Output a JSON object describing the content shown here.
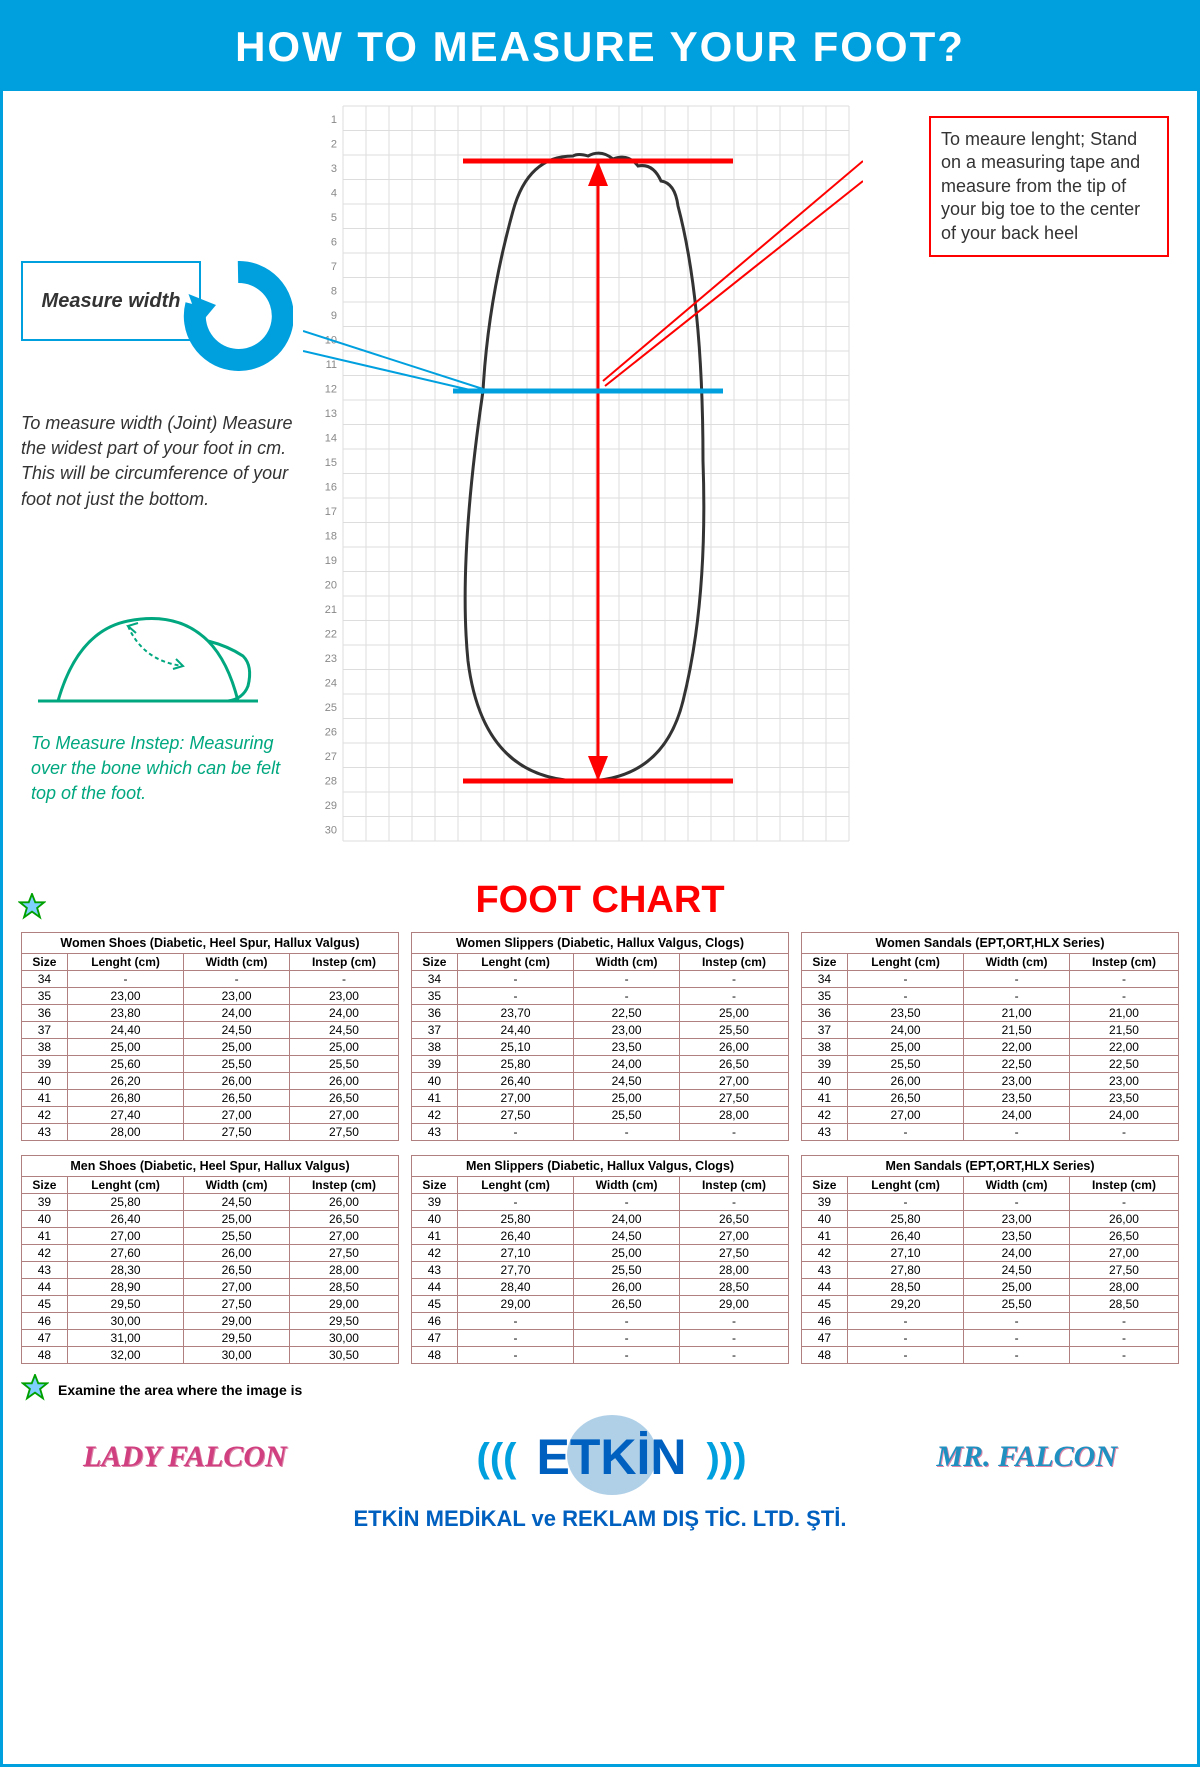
{
  "header": "HOW TO MEASURE YOUR FOOT?",
  "labels": {
    "measureWidth": "Measure width",
    "widthDesc": "To measure width (Joint) Measure the widest part of your foot in cm. This will be circumference of your foot not just the bottom.",
    "instepDesc": "To Measure Instep: Measuring over the bone which can be felt top of the foot.",
    "lengthDesc": "To meaure lenght; Stand on a measuring tape and measure from  the tip of your big toe to the center of your back heel",
    "chartTitle": "FOOT CHART",
    "footnote": "Examine the area where the image is",
    "company": "ETKİN MEDİKAL ve REKLAM DIŞ TİC. LTD. ŞTİ.",
    "lady": "LADY FALCON",
    "etkin": "ETKİN",
    "mr": "MR. FALCON"
  },
  "gridNumbers": [
    1,
    2,
    3,
    4,
    5,
    6,
    7,
    8,
    9,
    10,
    11,
    12,
    13,
    14,
    15,
    16,
    17,
    18,
    19,
    20,
    21,
    22,
    23,
    24,
    25,
    26,
    27,
    28,
    29,
    30
  ],
  "tableHeaders": [
    "Size",
    "Lenght (cm)",
    "Width (cm)",
    "Instep (cm)"
  ],
  "tables": [
    {
      "title": "Women Shoes (Diabetic, Heel Spur, Hallux Valgus)",
      "rows": [
        [
          "34",
          "-",
          "-",
          "-"
        ],
        [
          "35",
          "23,00",
          "23,00",
          "23,00"
        ],
        [
          "36",
          "23,80",
          "24,00",
          "24,00"
        ],
        [
          "37",
          "24,40",
          "24,50",
          "24,50"
        ],
        [
          "38",
          "25,00",
          "25,00",
          "25,00"
        ],
        [
          "39",
          "25,60",
          "25,50",
          "25,50"
        ],
        [
          "40",
          "26,20",
          "26,00",
          "26,00"
        ],
        [
          "41",
          "26,80",
          "26,50",
          "26,50"
        ],
        [
          "42",
          "27,40",
          "27,00",
          "27,00"
        ],
        [
          "43",
          "28,00",
          "27,50",
          "27,50"
        ]
      ]
    },
    {
      "title": "Women Slippers (Diabetic, Hallux Valgus, Clogs)",
      "rows": [
        [
          "34",
          "-",
          "-",
          "-"
        ],
        [
          "35",
          "-",
          "-",
          "-"
        ],
        [
          "36",
          "23,70",
          "22,50",
          "25,00"
        ],
        [
          "37",
          "24,40",
          "23,00",
          "25,50"
        ],
        [
          "38",
          "25,10",
          "23,50",
          "26,00"
        ],
        [
          "39",
          "25,80",
          "24,00",
          "26,50"
        ],
        [
          "40",
          "26,40",
          "24,50",
          "27,00"
        ],
        [
          "41",
          "27,00",
          "25,00",
          "27,50"
        ],
        [
          "42",
          "27,50",
          "25,50",
          "28,00"
        ],
        [
          "43",
          "-",
          "-",
          "-"
        ]
      ]
    },
    {
      "title": "Women Sandals (EPT,ORT,HLX Series)",
      "rows": [
        [
          "34",
          "-",
          "-",
          "-"
        ],
        [
          "35",
          "-",
          "-",
          "-"
        ],
        [
          "36",
          "23,50",
          "21,00",
          "21,00"
        ],
        [
          "37",
          "24,00",
          "21,50",
          "21,50"
        ],
        [
          "38",
          "25,00",
          "22,00",
          "22,00"
        ],
        [
          "39",
          "25,50",
          "22,50",
          "22,50"
        ],
        [
          "40",
          "26,00",
          "23,00",
          "23,00"
        ],
        [
          "41",
          "26,50",
          "23,50",
          "23,50"
        ],
        [
          "42",
          "27,00",
          "24,00",
          "24,00"
        ],
        [
          "43",
          "-",
          "-",
          "-"
        ]
      ]
    },
    {
      "title": "Men Shoes (Diabetic, Heel Spur, Hallux Valgus)",
      "rows": [
        [
          "39",
          "25,80",
          "24,50",
          "26,00"
        ],
        [
          "40",
          "26,40",
          "25,00",
          "26,50"
        ],
        [
          "41",
          "27,00",
          "25,50",
          "27,00"
        ],
        [
          "42",
          "27,60",
          "26,00",
          "27,50"
        ],
        [
          "43",
          "28,30",
          "26,50",
          "28,00"
        ],
        [
          "44",
          "28,90",
          "27,00",
          "28,50"
        ],
        [
          "45",
          "29,50",
          "27,50",
          "29,00"
        ],
        [
          "46",
          "30,00",
          "29,00",
          "29,50"
        ],
        [
          "47",
          "31,00",
          "29,50",
          "30,00"
        ],
        [
          "48",
          "32,00",
          "30,00",
          "30,50"
        ]
      ]
    },
    {
      "title": "Men Slippers (Diabetic, Hallux Valgus, Clogs)",
      "rows": [
        [
          "39",
          "-",
          "-",
          "-"
        ],
        [
          "40",
          "25,80",
          "24,00",
          "26,50"
        ],
        [
          "41",
          "26,40",
          "24,50",
          "27,00"
        ],
        [
          "42",
          "27,10",
          "25,00",
          "27,50"
        ],
        [
          "43",
          "27,70",
          "25,50",
          "28,00"
        ],
        [
          "44",
          "28,40",
          "26,00",
          "28,50"
        ],
        [
          "45",
          "29,00",
          "26,50",
          "29,00"
        ],
        [
          "46",
          "-",
          "-",
          "-"
        ],
        [
          "47",
          "-",
          "-",
          "-"
        ],
        [
          "48",
          "-",
          "-",
          "-"
        ]
      ]
    },
    {
      "title": "Men Sandals (EPT,ORT,HLX Series)",
      "rows": [
        [
          "39",
          "-",
          "-",
          "-"
        ],
        [
          "40",
          "25,80",
          "23,00",
          "26,00"
        ],
        [
          "41",
          "26,40",
          "23,50",
          "26,50"
        ],
        [
          "42",
          "27,10",
          "24,00",
          "27,00"
        ],
        [
          "43",
          "27,80",
          "24,50",
          "27,50"
        ],
        [
          "44",
          "28,50",
          "25,00",
          "28,00"
        ],
        [
          "45",
          "29,20",
          "25,50",
          "28,50"
        ],
        [
          "46",
          "-",
          "-",
          "-"
        ],
        [
          "47",
          "-",
          "-",
          "-"
        ],
        [
          "48",
          "-",
          "-",
          "-"
        ]
      ]
    }
  ],
  "colors": {
    "primary": "#00a0df",
    "accent": "#ff0000",
    "green": "#00a77f",
    "tableBorder": "#b08080",
    "starFill": "#7fd0ff",
    "starStroke": "#00a000"
  }
}
